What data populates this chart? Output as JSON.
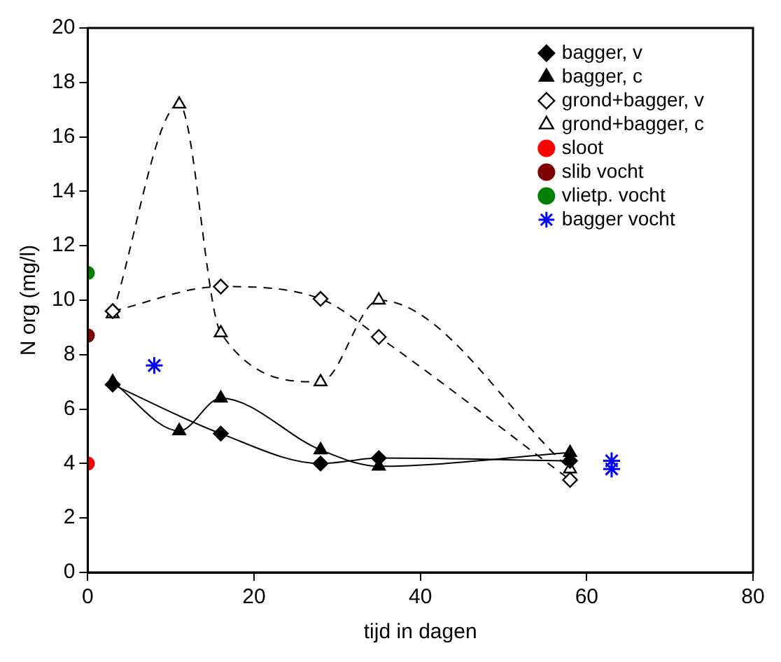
{
  "chart_data": {
    "type": "line",
    "xlabel": "tijd in dagen",
    "ylabel": "N org (mg/l)",
    "xlim": [
      0,
      80
    ],
    "xticks": [
      0,
      20,
      40,
      60,
      80
    ],
    "ylim": [
      0,
      20
    ],
    "yticks": [
      0,
      2,
      4,
      6,
      8,
      10,
      12,
      14,
      16,
      18,
      20
    ],
    "grid": false,
    "legend": "top right",
    "series": [
      {
        "name": "bagger, v",
        "type": "line",
        "color": "#000000",
        "marker": "diamond",
        "line_style": "solid",
        "x": [
          3,
          16,
          28,
          35,
          58
        ],
        "values": [
          6.9,
          5.1,
          4.0,
          4.2,
          4.1
        ]
      },
      {
        "name": "bagger, c",
        "type": "line",
        "color": "#000000",
        "marker": "triangle",
        "line_style": "solid",
        "x": [
          3,
          11,
          16,
          28,
          35,
          58
        ],
        "values": [
          7.0,
          5.2,
          6.4,
          4.5,
          3.9,
          4.4
        ]
      },
      {
        "name": "grond+bagger, v",
        "type": "line",
        "color": "#000000",
        "marker": "diamond",
        "line_style": "dashed",
        "x": [
          3,
          16,
          28,
          35,
          58
        ],
        "values": [
          9.6,
          10.5,
          10.05,
          8.65,
          3.4
        ]
      },
      {
        "name": "grond+bagger, c",
        "type": "line",
        "color": "#000000",
        "marker": "triangle",
        "line_style": "dashed",
        "x": [
          3,
          11,
          16,
          28,
          35,
          58
        ],
        "values": [
          9.5,
          17.2,
          8.8,
          7.0,
          10.0,
          3.8
        ]
      },
      {
        "name": "sloot",
        "type": "scatter",
        "color": "#ff0000",
        "marker": "circle",
        "x": [
          0
        ],
        "values": [
          4.0
        ]
      },
      {
        "name": "slib vocht",
        "type": "scatter",
        "color": "#800000",
        "marker": "circle",
        "x": [
          0
        ],
        "values": [
          8.7
        ]
      },
      {
        "name": "vlietp. vocht",
        "type": "scatter",
        "color": "#008000",
        "marker": "circle",
        "x": [
          0
        ],
        "values": [
          11.0
        ]
      },
      {
        "name": "bagger vocht",
        "type": "scatter",
        "color": "#0000ff",
        "marker": "cross",
        "x": [
          8,
          63,
          63
        ],
        "values": [
          7.6,
          4.1,
          3.8
        ]
      }
    ]
  }
}
